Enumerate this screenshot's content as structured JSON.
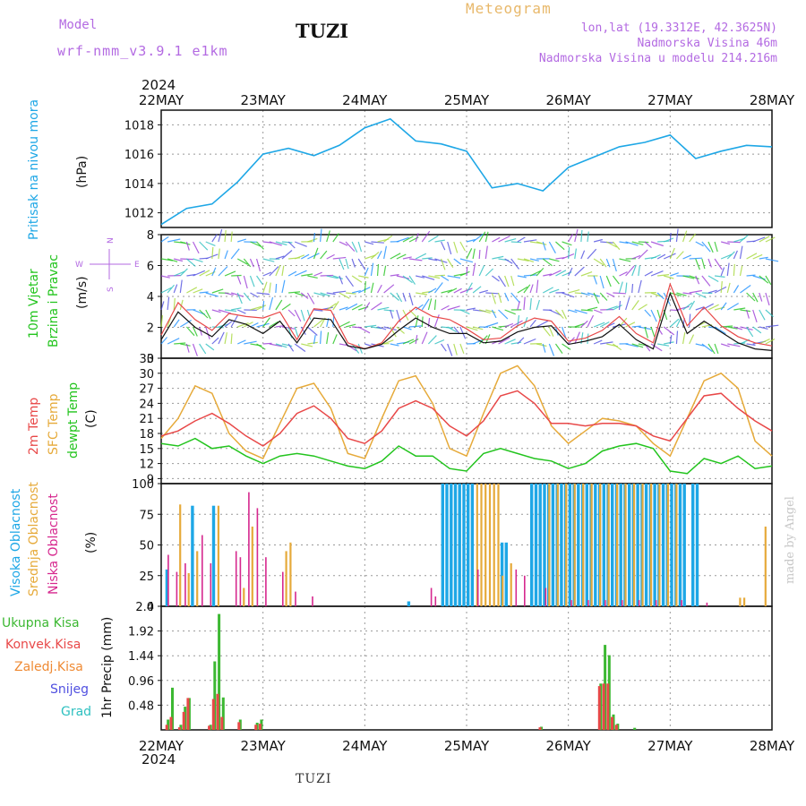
{
  "header": {
    "model_label": "Model",
    "model_name": "wrf-nmm_v3.9.1 e1km",
    "station": "TUZI",
    "title": "Meteogram",
    "lonlat": "lon,lat (19.3312E, 42.3625N)",
    "altitude": "Nadmorska Visina 46m",
    "model_altitude": "Nadmorska Visina u modelu 214.216m",
    "footer_station": "TUZI",
    "credit": "made by Angel"
  },
  "x_axis": {
    "year_label": "2024",
    "days": [
      "22MAY",
      "23MAY",
      "24MAY",
      "25MAY",
      "26MAY",
      "27MAY",
      "28MAY"
    ],
    "hours_span": 144
  },
  "colors": {
    "pressure": "#1ea7e6",
    "temp2m": "#e84848",
    "sfc": "#e6aa3a",
    "dewpt": "#23c41e",
    "high_cloud": "#1ea7e6",
    "mid_cloud": "#e6aa3a",
    "low_cloud": "#d6288e",
    "precip_total": "#3cb832",
    "precip_conv": "#e84848",
    "precip_frz": "#ef8a33",
    "snow": "#5050e0",
    "graupel": "#2ec0c0",
    "wind_speed": "#111111",
    "gust": "#e84848",
    "axis_label_purple": "#b36ae2"
  },
  "panels": {
    "pressure": {
      "label": "Pritisak na nivou mora",
      "unit": "(hPa)"
    },
    "wind": {
      "label1": "10m Vjetar",
      "label2": "Brzina i Pravac",
      "unit": "(m/s)",
      "compass_n": "N",
      "compass_w": "W",
      "compass_e": "E",
      "compass_s": "S",
      "compass_row_top": "^",
      "compass_row_bot": "v"
    },
    "temp": {
      "label1": "2m Temp",
      "label2": "SFC Temp",
      "label3": "dewpt Temp",
      "unit": "(C)"
    },
    "cloud": {
      "label1": "Visoka Oblacnost",
      "label2": "Srednja Oblacnost",
      "label3": "Niska Oblacnost",
      "unit": "(%)"
    },
    "precip": {
      "unit": "1hr Precip (mm)",
      "legend": [
        "Ukupna Kisa",
        "Konvek.Kisa",
        "Zaledj.Kisa",
        "Snijeg",
        "Grad"
      ]
    }
  },
  "chart_data": [
    {
      "type": "line",
      "name": "pressure",
      "ylim": [
        1011,
        1019
      ],
      "yticks": [
        1012,
        1014,
        1016,
        1018
      ],
      "x": [
        0,
        6,
        12,
        18,
        24,
        30,
        36,
        42,
        48,
        54,
        60,
        66,
        72,
        78,
        84,
        90,
        96,
        102,
        108,
        114,
        120,
        126,
        132,
        138,
        144
      ],
      "series": [
        {
          "values": [
            1011.2,
            1012.3,
            1012.6,
            1014.1,
            1016.0,
            1016.4,
            1015.9,
            1016.6,
            1017.8,
            1018.4,
            1016.9,
            1016.7,
            1016.2,
            1013.7,
            1014.0,
            1013.5,
            1015.1,
            1015.8,
            1016.5,
            1016.8,
            1017.3,
            1015.7,
            1016.2,
            1016.6,
            1016.5
          ]
        }
      ]
    },
    {
      "type": "line",
      "name": "wind",
      "ylim": [
        0,
        8
      ],
      "yticks": [
        0,
        2,
        4,
        6,
        8
      ],
      "x": [
        0,
        4,
        8,
        12,
        16,
        20,
        24,
        28,
        32,
        36,
        40,
        44,
        48,
        52,
        56,
        60,
        64,
        68,
        72,
        76,
        80,
        84,
        88,
        92,
        96,
        100,
        104,
        108,
        112,
        116,
        120,
        124,
        128,
        132,
        136,
        140,
        144
      ],
      "series": [
        {
          "values": [
            1.5,
            3.6,
            2.5,
            1.8,
            2.9,
            2.7,
            2.6,
            3.0,
            1.2,
            3.2,
            3.1,
            1.0,
            0.6,
            1.0,
            2.4,
            3.3,
            2.7,
            2.5,
            1.9,
            1.2,
            1.3,
            2.1,
            2.6,
            2.4,
            1.1,
            1.3,
            1.8,
            2.7,
            1.6,
            1.0,
            4.8,
            2.1,
            3.3,
            2.1,
            1.4,
            1.0,
            0.8
          ]
        },
        {
          "values": [
            1.2,
            3.0,
            2.0,
            1.4,
            2.5,
            2.2,
            1.6,
            2.4,
            1.0,
            2.6,
            2.5,
            0.8,
            0.6,
            0.9,
            1.8,
            2.6,
            2.0,
            1.6,
            1.6,
            1.0,
            1.1,
            1.7,
            2.0,
            2.1,
            0.9,
            1.1,
            1.4,
            2.2,
            1.2,
            0.6,
            4.2,
            1.6,
            2.4,
            1.7,
            1.0,
            0.6,
            0.5
          ]
        }
      ]
    },
    {
      "type": "line",
      "name": "temperature",
      "ylim": [
        8,
        33
      ],
      "yticks": [
        9,
        12,
        15,
        18,
        21,
        24,
        27,
        30,
        33
      ],
      "x": [
        0,
        4,
        8,
        12,
        16,
        20,
        24,
        28,
        32,
        36,
        40,
        44,
        48,
        52,
        56,
        60,
        64,
        68,
        72,
        76,
        80,
        84,
        88,
        92,
        96,
        100,
        104,
        108,
        112,
        116,
        120,
        124,
        128,
        132,
        136,
        140,
        144
      ],
      "series": [
        {
          "values": [
            17.5,
            18.5,
            20.5,
            22.0,
            20.0,
            17.5,
            15.5,
            18.0,
            22.0,
            23.5,
            21.0,
            17.0,
            16.0,
            18.5,
            23.0,
            24.5,
            23.0,
            19.5,
            17.5,
            20.5,
            25.5,
            26.5,
            24.0,
            20.0,
            20.0,
            19.5,
            20.0,
            20.0,
            19.5,
            17.5,
            16.5,
            21.0,
            25.5,
            26.0,
            23.0,
            20.5,
            18.5
          ]
        },
        {
          "values": [
            17.0,
            21.0,
            27.5,
            26.0,
            18.0,
            14.5,
            13.0,
            20.0,
            27.0,
            28.0,
            23.0,
            14.0,
            13.0,
            21.0,
            28.5,
            29.5,
            24.0,
            15.0,
            13.5,
            22.0,
            30.0,
            31.5,
            27.5,
            19.5,
            16.0,
            18.5,
            21.0,
            20.5,
            19.5,
            16.0,
            13.5,
            21.0,
            28.5,
            30.0,
            27.0,
            16.5,
            13.5
          ]
        },
        {
          "values": [
            16.0,
            15.5,
            17.0,
            15.0,
            15.5,
            13.5,
            12.0,
            13.5,
            14.0,
            13.5,
            12.5,
            11.5,
            11.0,
            12.5,
            15.5,
            13.5,
            13.5,
            11.0,
            10.5,
            14.0,
            15.0,
            14.0,
            13.0,
            12.5,
            11.0,
            12.0,
            14.5,
            15.5,
            16.0,
            15.0,
            10.5,
            10.0,
            13.0,
            12.0,
            13.5,
            11.0,
            11.5
          ]
        }
      ]
    },
    {
      "type": "bar",
      "name": "cloud_cover",
      "ylim": [
        0,
        100
      ],
      "yticks": [
        0,
        25,
        50,
        75,
        100
      ],
      "series": [
        {
          "points": [
            [
              1,
              30
            ],
            [
              7,
              82
            ],
            [
              12,
              82
            ],
            [
              58,
              4
            ],
            [
              66,
              100
            ],
            [
              67,
              100
            ],
            [
              68,
              100
            ],
            [
              69,
              100
            ],
            [
              70,
              100
            ],
            [
              71,
              100
            ],
            [
              72,
              100
            ],
            [
              73,
              100
            ],
            [
              80,
              52
            ],
            [
              81,
              52
            ],
            [
              87,
              100
            ],
            [
              88,
              100
            ],
            [
              89,
              100
            ],
            [
              90,
              100
            ],
            [
              91,
              100
            ],
            [
              92,
              100
            ],
            [
              93,
              100
            ],
            [
              94,
              100
            ],
            [
              95,
              100
            ],
            [
              96,
              100
            ],
            [
              97,
              100
            ],
            [
              98,
              100
            ],
            [
              99,
              100
            ],
            [
              100,
              100
            ],
            [
              101,
              100
            ],
            [
              102,
              100
            ],
            [
              103,
              100
            ],
            [
              104,
              100
            ],
            [
              105,
              100
            ],
            [
              106,
              100
            ],
            [
              107,
              100
            ],
            [
              108,
              100
            ],
            [
              109,
              100
            ],
            [
              110,
              100
            ],
            [
              111,
              100
            ],
            [
              112,
              100
            ],
            [
              113,
              100
            ],
            [
              114,
              100
            ],
            [
              115,
              100
            ],
            [
              116,
              100
            ],
            [
              117,
              100
            ],
            [
              118,
              100
            ],
            [
              119,
              100
            ],
            [
              120,
              100
            ],
            [
              121,
              100
            ],
            [
              122,
              100
            ],
            [
              123,
              100
            ],
            [
              125,
              100
            ],
            [
              126,
              100
            ]
          ]
        },
        {
          "points": [
            [
              4,
              83
            ],
            [
              6,
              27
            ],
            [
              8,
              45
            ],
            [
              13,
              82
            ],
            [
              19,
              15
            ],
            [
              21,
              65
            ],
            [
              29,
              45
            ],
            [
              30,
              52
            ],
            [
              74,
              100
            ],
            [
              75,
              100
            ],
            [
              76,
              100
            ],
            [
              77,
              100
            ],
            [
              78,
              100
            ],
            [
              79,
              100
            ],
            [
              80,
              25
            ],
            [
              82,
              35
            ],
            [
              91,
              100
            ],
            [
              93,
              100
            ],
            [
              95,
              100
            ],
            [
              97,
              100
            ],
            [
              99,
              100
            ],
            [
              101,
              100
            ],
            [
              103,
              100
            ],
            [
              105,
              100
            ],
            [
              107,
              100
            ],
            [
              109,
              100
            ],
            [
              111,
              100
            ],
            [
              113,
              100
            ],
            [
              115,
              100
            ],
            [
              117,
              100
            ],
            [
              119,
              100
            ],
            [
              121,
              100
            ],
            [
              136,
              7
            ],
            [
              137,
              7
            ],
            [
              142,
              65
            ]
          ]
        },
        {
          "points": [
            [
              1,
              42
            ],
            [
              3,
              28
            ],
            [
              5,
              35
            ],
            [
              9,
              58
            ],
            [
              11,
              35
            ],
            [
              17,
              45
            ],
            [
              18,
              40
            ],
            [
              20,
              93
            ],
            [
              22,
              80
            ],
            [
              24,
              40
            ],
            [
              28,
              28
            ],
            [
              31,
              12
            ],
            [
              35,
              8
            ],
            [
              63,
              15
            ],
            [
              64,
              8
            ],
            [
              74,
              30
            ],
            [
              83,
              30
            ],
            [
              85,
              25
            ],
            [
              90,
              15
            ],
            [
              96,
              5
            ],
            [
              100,
              5
            ],
            [
              104,
              5
            ],
            [
              108,
              5
            ],
            [
              112,
              5
            ],
            [
              116,
              5
            ],
            [
              122,
              5
            ],
            [
              128,
              3
            ]
          ]
        }
      ]
    },
    {
      "type": "bar",
      "name": "precipitation",
      "ylim": [
        0,
        2.4
      ],
      "yticks": [
        0.48,
        0.96,
        1.44,
        1.92,
        2.4
      ],
      "series": [
        {
          "points": [
            [
              1,
              0.2
            ],
            [
              2,
              0.82
            ],
            [
              4,
              0.1
            ],
            [
              5,
              0.45
            ],
            [
              6,
              0.62
            ],
            [
              11,
              0.1
            ],
            [
              12,
              1.33
            ],
            [
              13,
              2.25
            ],
            [
              14,
              0.63
            ],
            [
              18,
              0.2
            ],
            [
              22,
              0.14
            ],
            [
              23,
              0.2
            ],
            [
              89,
              0.06
            ],
            [
              103,
              0.9
            ],
            [
              104,
              1.65
            ],
            [
              105,
              1.45
            ],
            [
              106,
              0.3
            ],
            [
              107,
              0.12
            ],
            [
              111,
              0.04
            ]
          ]
        },
        {
          "points": [
            [
              1,
              0.1
            ],
            [
              2,
              0.25
            ],
            [
              4,
              0.05
            ],
            [
              5,
              0.35
            ],
            [
              6,
              0.62
            ],
            [
              11,
              0.08
            ],
            [
              12,
              0.6
            ],
            [
              13,
              0.7
            ],
            [
              14,
              0.25
            ],
            [
              18,
              0.15
            ],
            [
              22,
              0.1
            ],
            [
              23,
              0.12
            ],
            [
              89,
              0.05
            ],
            [
              103,
              0.85
            ],
            [
              104,
              0.9
            ],
            [
              105,
              0.9
            ],
            [
              106,
              0.25
            ],
            [
              107,
              0.1
            ]
          ]
        }
      ]
    }
  ]
}
